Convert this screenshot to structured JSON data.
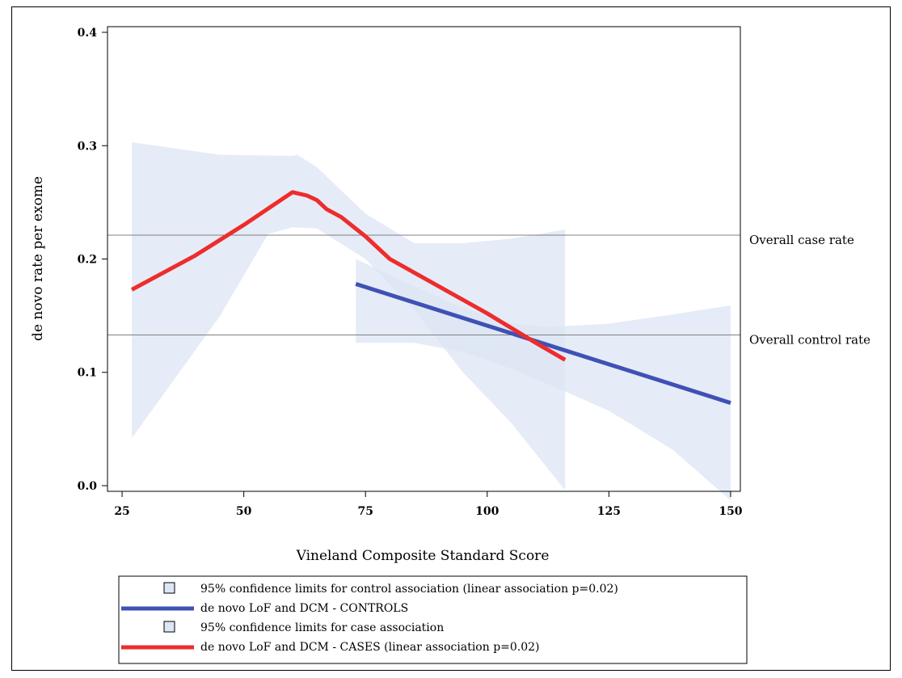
{
  "chart_data": {
    "type": "line",
    "xlabel": "Vineland Composite Standard Score",
    "ylabel": "de novo rate per exome",
    "xlim": [
      22,
      152
    ],
    "ylim": [
      -0.005,
      0.405
    ],
    "x_ticks": [
      25,
      50,
      75,
      100,
      125,
      150
    ],
    "y_ticks": [
      0.0,
      0.1,
      0.2,
      0.3,
      0.4
    ],
    "x_tick_labels": [
      "25",
      "50",
      "75",
      "100",
      "125",
      "150"
    ],
    "y_tick_labels": [
      "0.0",
      "0.1",
      "0.2",
      "0.3",
      "0.4"
    ],
    "grid": false,
    "reference_lines": [
      {
        "label": "Overall case rate",
        "y": 0.221
      },
      {
        "label": "Overall control rate",
        "y": 0.133
      }
    ],
    "bands": [
      {
        "name": "95% confidence limits for case association",
        "color": "#dce6f4",
        "upper": [
          [
            27,
            0.303
          ],
          [
            45,
            0.292
          ],
          [
            60,
            0.291
          ],
          [
            61,
            0.292
          ],
          [
            65,
            0.281
          ],
          [
            75,
            0.24
          ],
          [
            85,
            0.214
          ],
          [
            95,
            0.214
          ],
          [
            105,
            0.218
          ],
          [
            116,
            0.226
          ]
        ],
        "lower": [
          [
            27,
            0.042
          ],
          [
            45,
            0.149
          ],
          [
            55,
            0.222
          ],
          [
            60,
            0.228
          ],
          [
            65,
            0.227
          ],
          [
            75,
            0.2
          ],
          [
            85,
            0.155
          ],
          [
            95,
            0.1
          ],
          [
            105,
            0.055
          ],
          [
            116,
            -0.004
          ]
        ]
      },
      {
        "name": "95% confidence limits for control association (linear association p=0.02)",
        "color": "#dce6f4",
        "upper": [
          [
            73,
            0.2
          ],
          [
            85,
            0.176
          ],
          [
            95,
            0.157
          ],
          [
            105,
            0.143
          ],
          [
            113,
            0.14
          ],
          [
            125,
            0.143
          ],
          [
            138,
            0.151
          ],
          [
            150,
            0.159
          ]
        ],
        "lower": [
          [
            73,
            0.126
          ],
          [
            85,
            0.126
          ],
          [
            95,
            0.118
          ],
          [
            105,
            0.103
          ],
          [
            115,
            0.085
          ],
          [
            125,
            0.066
          ],
          [
            138,
            0.032
          ],
          [
            150,
            -0.013
          ]
        ]
      }
    ],
    "series": [
      {
        "name": "de novo LoF and DCM - CONTROLS",
        "color": "#3f51b5",
        "x": [
          73,
          150
        ],
        "y": [
          0.178,
          0.073
        ]
      },
      {
        "name": "de novo LoF and DCM - CASES (linear association p=0.02)",
        "color": "#ee2c2c",
        "x": [
          27,
          40,
          50,
          60,
          63,
          65,
          67,
          70,
          75,
          80,
          90,
          100,
          110,
          116
        ],
        "y": [
          0.173,
          0.203,
          0.23,
          0.259,
          0.256,
          0.252,
          0.244,
          0.237,
          0.22,
          0.2,
          0.176,
          0.152,
          0.126,
          0.111
        ]
      }
    ],
    "legend": {
      "placement": "bottom",
      "entries": [
        {
          "label": "95% confidence limits for control association (linear association p=0.02)",
          "kind": "swatch"
        },
        {
          "label": "de novo LoF and DCM - CONTROLS",
          "kind": "line",
          "color": "#3f51b5"
        },
        {
          "label": "95% confidence limits for case association",
          "kind": "swatch"
        },
        {
          "label": "de novo LoF and DCM - CASES (linear association p=0.02)",
          "kind": "line",
          "color": "#ee2c2c"
        }
      ]
    }
  }
}
